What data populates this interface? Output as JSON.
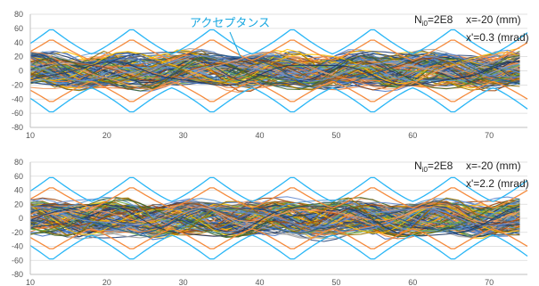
{
  "chart_data": [
    {
      "type": "line",
      "xlim": [
        10,
        75
      ],
      "ylim": [
        -80,
        80
      ],
      "x_ticks": [
        "10",
        "20",
        "30",
        "40",
        "50",
        "60",
        "70"
      ],
      "y_ticks": [
        "80",
        "60",
        "40",
        "20",
        "0",
        "-20",
        "-40",
        "-60",
        "-80"
      ],
      "grid": true,
      "legend": "none",
      "annotations": {
        "label": "アクセプタンス",
        "n_prefix": "N",
        "n_sub": "i0",
        "n_suffix": "=2E8",
        "x_text": "x=-20 (mm)",
        "xp_text": "x'=0.3 (mrad)"
      },
      "envelopes": {
        "outer_color": "#29b6f6",
        "inner_color": "#f58a3c",
        "outer_max": [
          40,
          24,
          60
        ],
        "inner_max": [
          30,
          15,
          45
        ],
        "period": 10.5
      },
      "trajectory_amplitude": 25
    },
    {
      "type": "line",
      "xlim": [
        10,
        75
      ],
      "ylim": [
        -80,
        80
      ],
      "x_ticks": [
        "10",
        "20",
        "30",
        "40",
        "50",
        "60",
        "70"
      ],
      "y_ticks": [
        "80",
        "60",
        "40",
        "20",
        "0",
        "-20",
        "-40",
        "-60",
        "-80"
      ],
      "grid": true,
      "legend": "none",
      "annotations": {
        "label": "",
        "n_prefix": "N",
        "n_sub": "i0",
        "n_suffix": "=2E8",
        "x_text": "x=-20 (mm)",
        "xp_text": "x'=2.2 (mrad)"
      },
      "envelopes": {
        "outer_color": "#29b6f6",
        "inner_color": "#f58a3c",
        "outer_max": [
          40,
          24,
          60
        ],
        "inner_max": [
          30,
          15,
          45
        ],
        "period": 10.5
      },
      "trajectory_amplitude": 25
    }
  ],
  "colors": {
    "palette": [
      "#4472c4",
      "#ed7d31",
      "#a5a5a5",
      "#ffc000",
      "#5b9bd5",
      "#70ad47",
      "#264478",
      "#9e480e",
      "#636363",
      "#997300",
      "#255e91",
      "#43682b",
      "#698ed0",
      "#f1975a",
      "#1f3864"
    ]
  }
}
